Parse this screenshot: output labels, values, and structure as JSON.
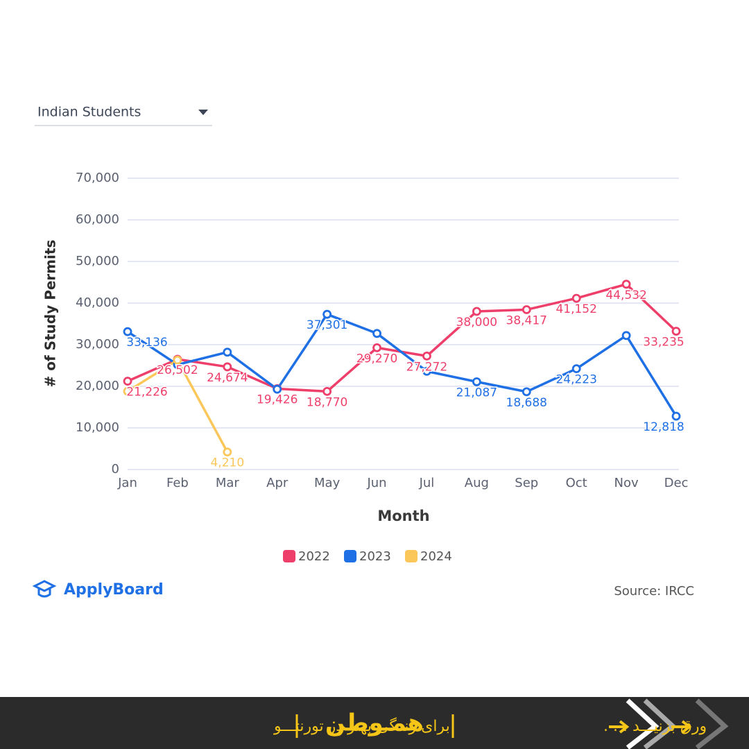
{
  "chart_data": {
    "type": "line",
    "dropdown": "Indian Students",
    "x_label": "Month",
    "y_label": "# of Study Permits",
    "brand": "ApplyBoard",
    "source": "Source: IRCC",
    "categories": [
      "Jan",
      "Feb",
      "Mar",
      "Apr",
      "May",
      "Jun",
      "Jul",
      "Aug",
      "Sep",
      "Oct",
      "Nov",
      "Dec"
    ],
    "series": [
      {
        "name": "2022",
        "color": "#ee3f6b",
        "values": [
          21226,
          26502,
          24674,
          19426,
          18770,
          29270,
          27272,
          38000,
          38417,
          41152,
          44532,
          33235
        ],
        "value_labels": [
          "21,226",
          "26,502",
          "24,674",
          "19,426",
          "18,770",
          "29,270",
          "27,272",
          "38,000",
          "38,417",
          "41,152",
          "44,532",
          "33,235"
        ]
      },
      {
        "name": "2023",
        "color": "#1f6fe5",
        "values": [
          33136,
          25200,
          28200,
          19300,
          37301,
          32700,
          23600,
          21087,
          18688,
          24223,
          32200,
          12818
        ],
        "value_labels": [
          "33,136",
          null,
          null,
          null,
          "37,301",
          null,
          null,
          "21,087",
          "18,688",
          "24,223",
          null,
          "12,818"
        ]
      },
      {
        "name": "2024",
        "color": "#fbc75a",
        "values": [
          18800,
          26300,
          4210,
          null,
          null,
          null,
          null,
          null,
          null,
          null,
          null,
          null
        ],
        "value_labels": [
          null,
          null,
          "4,210",
          null,
          null,
          null,
          null,
          null,
          null,
          null,
          null,
          null
        ]
      }
    ],
    "ylim": [
      0,
      70000
    ],
    "yticks": [
      0,
      {
        "value": 10000,
        "label": "10,000"
      },
      {
        "value": 20000,
        "label": "20,000"
      },
      {
        "value": 30000,
        "label": "30,000"
      },
      {
        "value": 40000,
        "label": "40,000"
      },
      {
        "value": 50000,
        "label": "50,000"
      },
      {
        "value": 60000,
        "label": "60,000"
      },
      {
        "value": 70000,
        "label": "70,000"
      }
    ],
    "grid": true,
    "legend": "bottom"
  },
  "footer": {
    "swipe": "ورق بزنیـــد . . .",
    "logo": "همـوطن",
    "tagline": "برای زندگی بهتر در تورنتـــو"
  }
}
